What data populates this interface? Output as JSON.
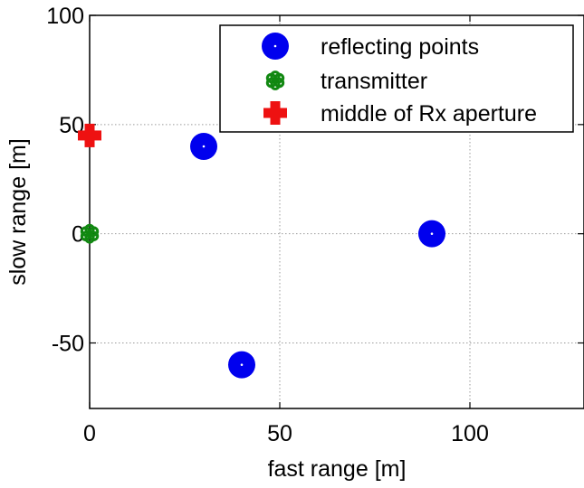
{
  "chart_data": {
    "type": "scatter",
    "xlabel": "fast range [m]",
    "ylabel": "slow range [m]",
    "xlim": [
      0,
      130
    ],
    "ylim": [
      -80,
      100
    ],
    "xticks": [
      0,
      50,
      100
    ],
    "xtick_labels": [
      "0",
      "50",
      "100"
    ],
    "yticks": [
      -50,
      0,
      50,
      100
    ],
    "ytick_labels": [
      "-50",
      "0",
      "50",
      "100"
    ],
    "grid": true,
    "legend_position": "top-right",
    "series": [
      {
        "name": "reflecting points",
        "marker": "filled-circle-with-white-dot",
        "color": "#0000ee",
        "points": [
          {
            "x": 30,
            "y": 40
          },
          {
            "x": 90,
            "y": 0
          },
          {
            "x": 40,
            "y": -60
          }
        ]
      },
      {
        "name": "transmitter",
        "marker": "flower-star",
        "color": "#118811",
        "points": [
          {
            "x": 0,
            "y": 0
          }
        ]
      },
      {
        "name": "middle of Rx aperture",
        "marker": "plus",
        "color": "#ee1111",
        "points": [
          {
            "x": 0,
            "y": 45
          }
        ]
      }
    ]
  }
}
